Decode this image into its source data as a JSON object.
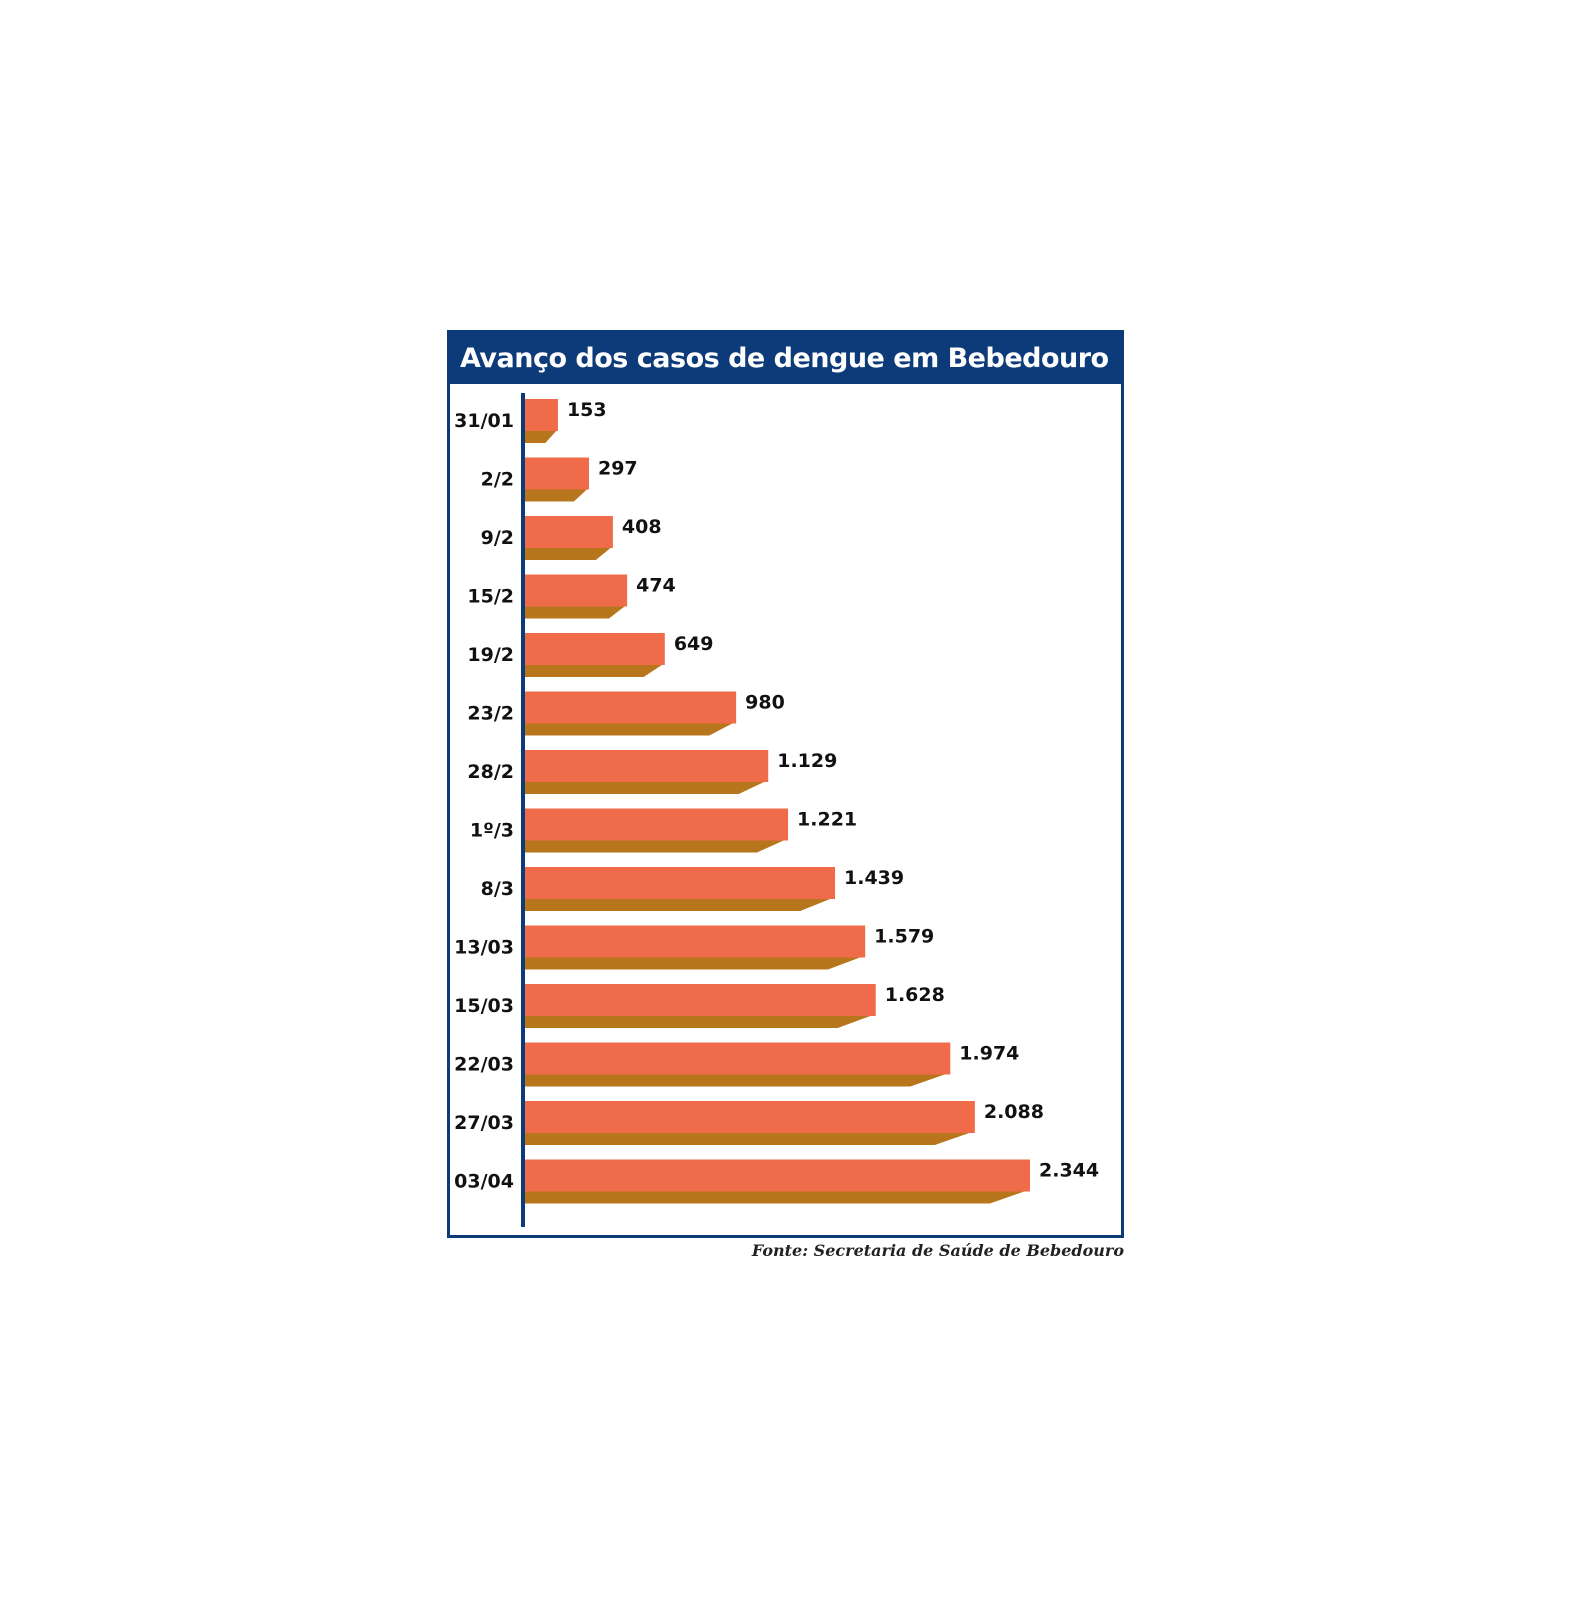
{
  "chart_data": {
    "type": "bar",
    "orientation": "horizontal",
    "title": "Avanço dos casos de dengue em Bebedouro",
    "categories": [
      "31/01",
      "2/2",
      "9/2",
      "15/2",
      "19/2",
      "23/2",
      "28/2",
      "1º/3",
      "8/3",
      "13/03",
      "15/03",
      "22/03",
      "27/03",
      "03/04"
    ],
    "values": [
      153,
      297,
      408,
      474,
      649,
      980,
      1129,
      1221,
      1439,
      1579,
      1628,
      1974,
      2088,
      2344
    ],
    "value_labels": [
      "153",
      "297",
      "408",
      "474",
      "649",
      "980",
      "1.129",
      "1.221",
      "1.439",
      "1.579",
      "1.628",
      "1.974",
      "2.088",
      "2.344"
    ],
    "xlim": [
      0,
      2344
    ],
    "grid": false,
    "legend": false,
    "source": "Fonte: Secretaria de Saúde de Bebedouro"
  },
  "colors": {
    "frame": "#0d3a78",
    "bar_face": "#f06b4a",
    "bar_shadow": "#b8761c",
    "axis": "#0d3a78"
  }
}
